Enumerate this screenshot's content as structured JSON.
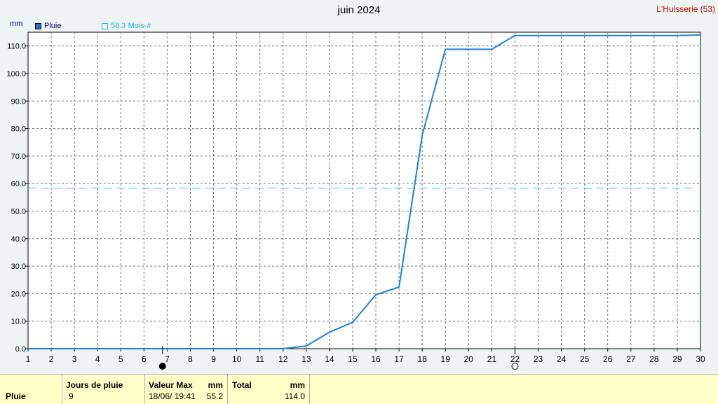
{
  "header": {
    "title": "juin 2024",
    "station": "L'Huisserie (53)",
    "unit": "mm"
  },
  "legend": {
    "series_label": "Pluie",
    "reference_label": "58.3 Mois-#"
  },
  "colors": {
    "series": "#1f7fe0",
    "reference": "#4cc7e0",
    "grid": "#6e6e6e",
    "panel": "#ffffc8"
  },
  "chart_data": {
    "type": "line",
    "x": [
      1,
      2,
      3,
      4,
      5,
      6,
      7,
      8,
      9,
      10,
      11,
      12,
      13,
      14,
      15,
      16,
      17,
      18,
      19,
      20,
      21,
      22,
      23,
      24,
      25,
      26,
      27,
      28,
      29,
      30
    ],
    "series": [
      {
        "name": "Pluie",
        "values": [
          0,
          0,
          0,
          0,
          0,
          0,
          0,
          0,
          0,
          0,
          0,
          0,
          1.0,
          6.0,
          9.6,
          19.6,
          22.4,
          77.6,
          108.8,
          108.8,
          108.8,
          113.8,
          113.8,
          113.8,
          113.8,
          113.8,
          113.8,
          113.8,
          113.8,
          114.0
        ]
      }
    ],
    "reference_line": {
      "value": 58.3,
      "label": "58.3 Mois-#"
    },
    "xlim": [
      1,
      30
    ],
    "ylim": [
      0,
      115
    ],
    "y_ticks": [
      "0.0",
      "10.0",
      "20.0",
      "30.0",
      "40.0",
      "50.0",
      "60.0",
      "70.0",
      "80.0",
      "90.0",
      "100.0",
      "110.0"
    ],
    "x_ticks": [
      "1",
      "2",
      "3",
      "4",
      "5",
      "6",
      "7",
      "8",
      "9",
      "10",
      "11",
      "12",
      "13",
      "14",
      "15",
      "16",
      "17",
      "18",
      "19",
      "20",
      "21",
      "22",
      "23",
      "24",
      "25",
      "26",
      "27",
      "28",
      "29",
      "30"
    ],
    "grid": true,
    "markers": [
      {
        "day": 6.8,
        "type": "filled-circle"
      },
      {
        "day": 22.0,
        "type": "open-circle"
      }
    ]
  },
  "summary": {
    "row_label": "Pluie",
    "jours_label": "Jours de pluie",
    "jours_value": "9",
    "max_label": "Valeur Max",
    "max_unit": "mm",
    "max_date": "18/06/ 19:41",
    "max_value": "55.2",
    "total_label": "Total",
    "total_unit": "mm",
    "total_value": "114.0"
  }
}
